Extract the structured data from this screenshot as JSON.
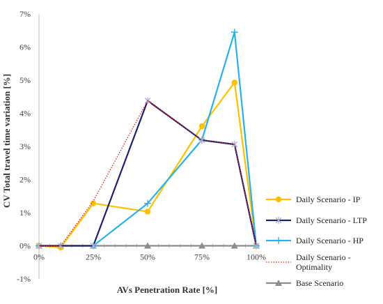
{
  "chart_data": {
    "type": "line",
    "xlabel": "AVs Penetration Rate [%]",
    "ylabel": "CV Total travel time variation [%]",
    "x_tick_labels": [
      "0%",
      "25%",
      "50%",
      "75%",
      "100%"
    ],
    "y_tick_labels": [
      "-1%",
      "0%",
      "1%",
      "2%",
      "3%",
      "4%",
      "5%",
      "6%",
      "7%"
    ],
    "xlim": [
      0,
      100
    ],
    "ylim": [
      -1,
      7
    ],
    "grid": false,
    "legend_position": "right",
    "series": [
      {
        "name": "Daily Scenario - IP",
        "color": "#FFC000",
        "marker": "circle",
        "line": "solid",
        "x": [
          0,
          10,
          25,
          50,
          75,
          90,
          100
        ],
        "y": [
          0,
          -0.05,
          1.28,
          1.03,
          3.61,
          4.93,
          0
        ]
      },
      {
        "name": "Daily Scenario - LTP",
        "color": "#1F1F6E",
        "marker": "star",
        "line": "solid",
        "x": [
          0,
          10,
          25,
          50,
          75,
          90,
          100
        ],
        "y": [
          0,
          0,
          0,
          4.38,
          3.19,
          3.06,
          0
        ]
      },
      {
        "name": "Daily Scenario - HP",
        "color": "#2AB0E8",
        "marker": "plus",
        "line": "solid",
        "x": [
          0,
          10,
          25,
          50,
          75,
          90,
          100
        ],
        "y": [
          0,
          0,
          0,
          1.28,
          3.2,
          6.45,
          0
        ]
      },
      {
        "name_lines": [
          "Daily Scenario -",
          "Optimality"
        ],
        "color": "#E02020",
        "marker": "none",
        "line": "dotted",
        "x": [
          0,
          10,
          25,
          50,
          75,
          90,
          100
        ],
        "y": [
          0,
          0,
          1.35,
          4.38,
          3.2,
          3.06,
          0
        ]
      },
      {
        "name": "Base Scenario",
        "color": "#8C8C8C",
        "marker": "triangle",
        "line": "solid",
        "x": [
          0,
          10,
          25,
          50,
          75,
          90,
          100
        ],
        "y": [
          0,
          0,
          0,
          0,
          0,
          0,
          0
        ]
      }
    ]
  }
}
